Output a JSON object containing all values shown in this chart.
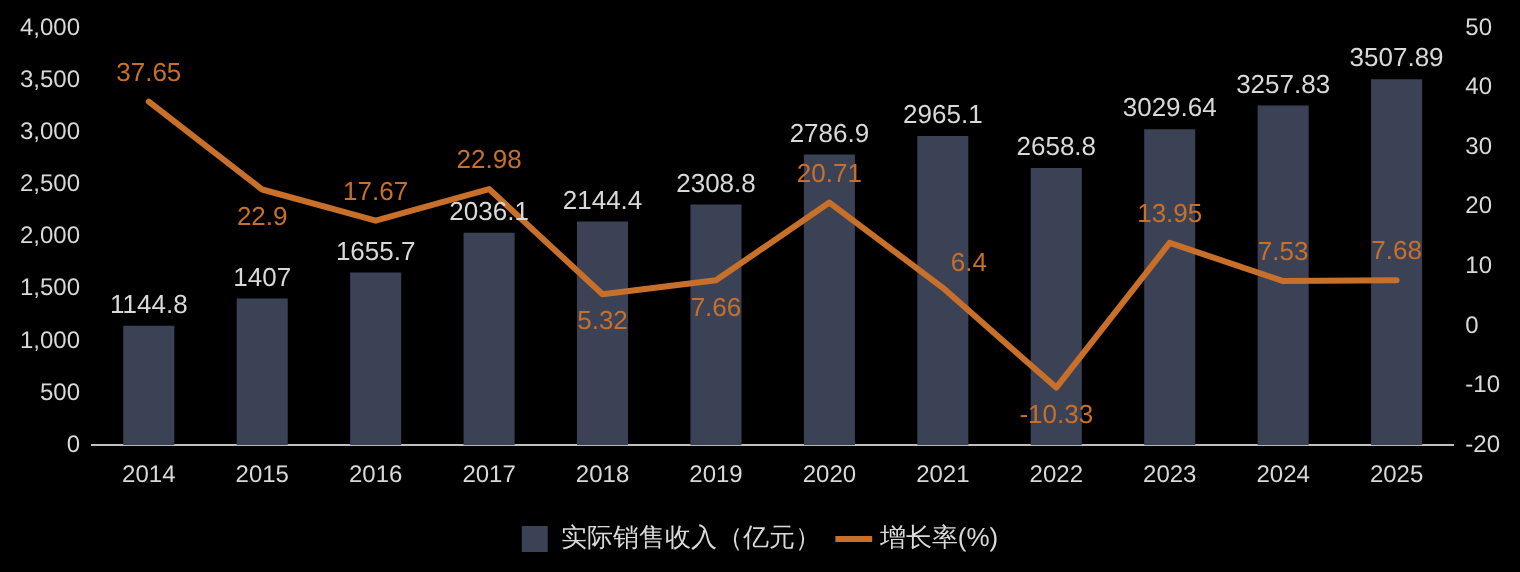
{
  "chart_data": {
    "type": "bar",
    "categories": [
      "2014",
      "2015",
      "2016",
      "2017",
      "2018",
      "2019",
      "2020",
      "2021",
      "2022",
      "2023",
      "2024",
      "2025"
    ],
    "series": [
      {
        "name": "实际销售收入（亿元）",
        "color": "#3b4256",
        "values": [
          1144.8,
          1407,
          1655.7,
          2036.1,
          2144.4,
          2308.8,
          2786.9,
          2965.1,
          2658.8,
          3029.64,
          3257.83,
          3507.89
        ]
      },
      {
        "name": "增长率(%)",
        "type": "line",
        "axis": "y2",
        "color": "#c8702a",
        "values": [
          37.65,
          22.9,
          17.67,
          22.98,
          5.32,
          7.66,
          20.71,
          6.4,
          -10.33,
          13.95,
          7.53,
          7.68
        ]
      }
    ],
    "ylim": [
      0,
      4000
    ],
    "yticks": [
      0,
      {
        "value": 500,
        "label": "500"
      },
      {
        "value": 1000,
        "label": "1,000"
      },
      {
        "value": 1500,
        "label": "1,500"
      },
      {
        "value": 2000,
        "label": "2,000"
      },
      {
        "value": 2500,
        "label": "2,500"
      },
      {
        "value": 3000,
        "label": "3,000"
      },
      {
        "value": 3500,
        "label": "3,500"
      },
      {
        "value": 4000,
        "label": "4,000"
      }
    ],
    "y2lim": [
      -20,
      50
    ],
    "y2ticks": [
      -20,
      -10,
      0,
      10,
      20,
      30,
      40,
      50
    ],
    "data_labels": true,
    "legend": "bottom",
    "grid": false,
    "marker": "none",
    "line_style": "solid"
  }
}
